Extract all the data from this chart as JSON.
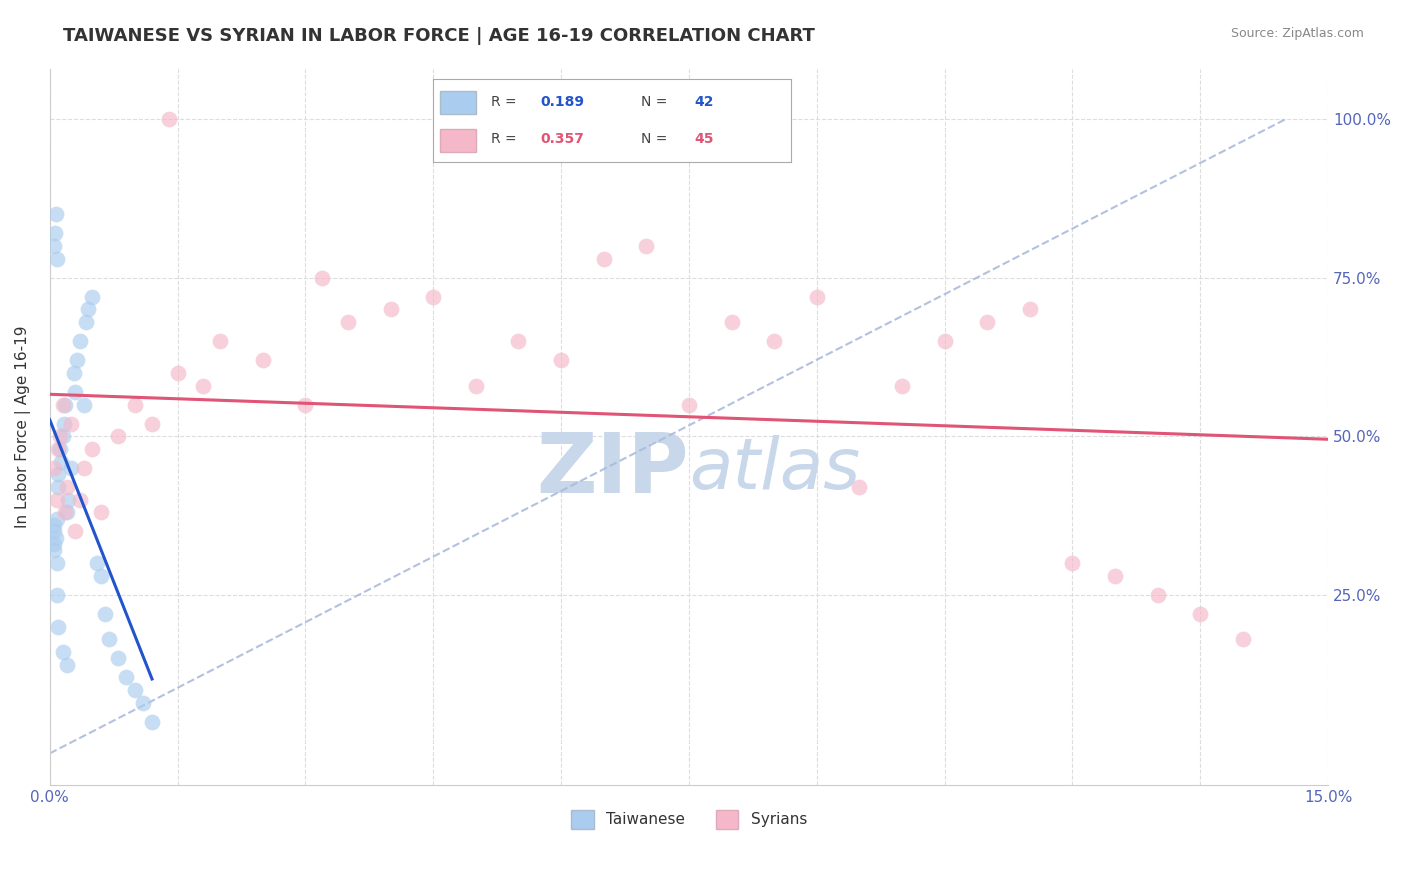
{
  "title": "TAIWANESE VS SYRIAN IN LABOR FORCE | AGE 16-19 CORRELATION CHART",
  "source": "Source: ZipAtlas.com",
  "xlim": [
    0.0,
    15.0
  ],
  "ylim": [
    -5.0,
    108.0
  ],
  "ylabel": "In Labor Force | Age 16-19",
  "r_taiwanese": 0.189,
  "n_taiwanese": 42,
  "r_syrian": 0.357,
  "n_syrian": 45,
  "taiwanese_scatter_color": "#aaccee",
  "syrian_scatter_color": "#f4b8c8",
  "taiwanese_line_color": "#2255cc",
  "syrian_line_color": "#e05575",
  "ref_line_color": "#aabbdd",
  "background_color": "#ffffff",
  "grid_color": "#dddddd",
  "title_fontsize": 13,
  "axis_label_fontsize": 11,
  "tick_fontsize": 11,
  "watermark_color": "#c8d8ea",
  "watermark_fontsize": 60,
  "taiwanese_x": [
    0.05,
    0.05,
    0.05,
    0.05,
    0.07,
    0.08,
    0.08,
    0.1,
    0.1,
    0.12,
    0.13,
    0.15,
    0.17,
    0.18,
    0.2,
    0.22,
    0.25,
    0.28,
    0.3,
    0.32,
    0.35,
    0.4,
    0.42,
    0.45,
    0.5,
    0.55,
    0.6,
    0.65,
    0.7,
    0.8,
    0.9,
    1.0,
    1.1,
    1.2,
    0.05,
    0.06,
    0.07,
    0.08,
    0.09,
    0.1,
    0.15,
    0.2
  ],
  "taiwanese_y": [
    35.0,
    33.0,
    36.0,
    32.0,
    34.0,
    37.0,
    30.0,
    42.0,
    44.0,
    48.0,
    46.0,
    50.0,
    52.0,
    55.0,
    38.0,
    40.0,
    45.0,
    60.0,
    57.0,
    62.0,
    65.0,
    55.0,
    68.0,
    70.0,
    72.0,
    30.0,
    28.0,
    22.0,
    18.0,
    15.0,
    12.0,
    10.0,
    8.0,
    5.0,
    80.0,
    82.0,
    85.0,
    78.0,
    25.0,
    20.0,
    16.0,
    14.0
  ],
  "syrian_x": [
    0.05,
    0.08,
    0.1,
    0.12,
    0.15,
    0.18,
    0.2,
    0.25,
    0.3,
    0.35,
    0.4,
    0.5,
    0.6,
    0.8,
    1.0,
    1.2,
    1.5,
    1.8,
    2.0,
    2.5,
    3.0,
    3.5,
    4.0,
    4.5,
    5.0,
    5.5,
    6.0,
    6.5,
    7.0,
    7.5,
    8.0,
    8.5,
    9.0,
    9.5,
    10.0,
    10.5,
    11.0,
    11.5,
    12.0,
    12.5,
    13.0,
    13.5,
    14.0,
    1.4,
    3.2
  ],
  "syrian_y": [
    45.0,
    40.0,
    48.0,
    50.0,
    55.0,
    38.0,
    42.0,
    52.0,
    35.0,
    40.0,
    45.0,
    48.0,
    38.0,
    50.0,
    55.0,
    52.0,
    60.0,
    58.0,
    65.0,
    62.0,
    55.0,
    68.0,
    70.0,
    72.0,
    58.0,
    65.0,
    62.0,
    78.0,
    80.0,
    55.0,
    68.0,
    65.0,
    72.0,
    42.0,
    58.0,
    65.0,
    68.0,
    70.0,
    30.0,
    28.0,
    25.0,
    22.0,
    18.0,
    100.0,
    75.0
  ]
}
